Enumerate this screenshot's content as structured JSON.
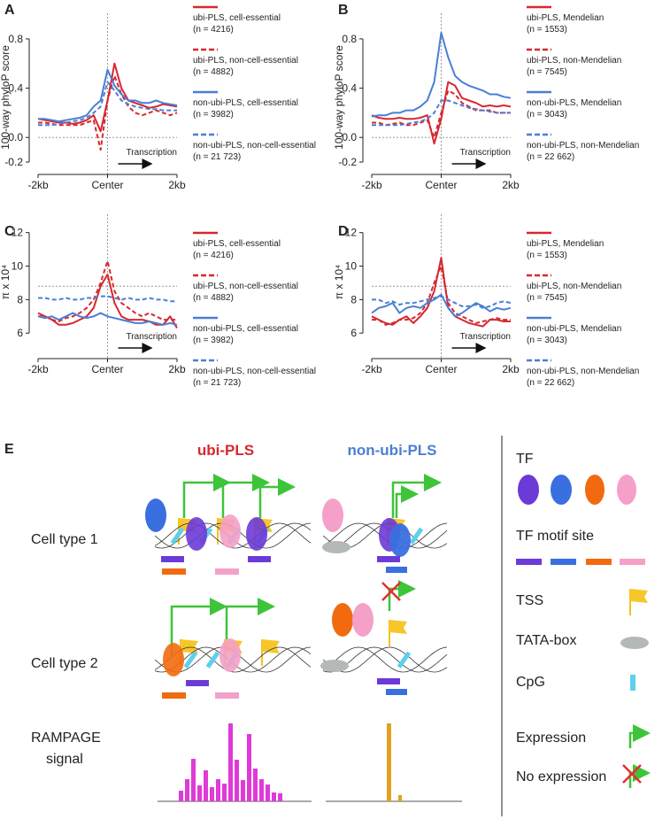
{
  "chart_data": [
    {
      "type": "line",
      "label": "A",
      "ylabel": "100-way phyloP score",
      "annotation": "Transcription",
      "x": [
        -2000,
        -1800,
        -1600,
        -1400,
        -1200,
        -1000,
        -800,
        -600,
        -400,
        -200,
        0,
        200,
        400,
        600,
        800,
        1000,
        1200,
        1400,
        1600,
        1800,
        2000
      ],
      "xlim": [
        -2000,
        2000
      ],
      "xticks": [
        {
          "value": -2000,
          "label": "-2kb"
        },
        {
          "value": 0,
          "label": "Center"
        },
        {
          "value": 2000,
          "label": "2kb"
        }
      ],
      "ylim": [
        -0.25,
        0.9
      ],
      "yticks": [
        -0.2,
        {
          "value": 0,
          "label": "0.0"
        },
        0.4,
        0.8
      ],
      "reference_y": 0,
      "reference_x": 0,
      "series": [
        {
          "name": "ubi-PLS, cell-essential",
          "count_label": "(n = 4216)",
          "color": "#d7282f",
          "dashed": false,
          "values": [
            0.15,
            0.14,
            0.13,
            0.12,
            0.12,
            0.11,
            0.12,
            0.14,
            0.18,
            0.05,
            0.3,
            0.6,
            0.4,
            0.3,
            0.28,
            0.26,
            0.24,
            0.25,
            0.27,
            0.26,
            0.25
          ]
        },
        {
          "name": "ubi-PLS, non-cell-essential",
          "count_label": "(n = 4882)",
          "color": "#d7282f",
          "dashed": true,
          "values": [
            0.12,
            0.12,
            0.11,
            0.1,
            0.1,
            0.1,
            0.1,
            0.12,
            0.14,
            -0.1,
            0.3,
            0.5,
            0.35,
            0.25,
            0.2,
            0.18,
            0.2,
            0.22,
            0.2,
            0.18,
            0.2
          ]
        },
        {
          "name": "non-ubi-PLS, cell-essential",
          "count_label": "(n = 3982)",
          "color": "#4a7fd4",
          "dashed": false,
          "values": [
            0.15,
            0.15,
            0.14,
            0.13,
            0.14,
            0.15,
            0.16,
            0.18,
            0.25,
            0.3,
            0.55,
            0.42,
            0.35,
            0.3,
            0.3,
            0.28,
            0.28,
            0.3,
            0.28,
            0.27,
            0.26
          ]
        },
        {
          "name": "non-ubi-PLS, non-cell-essential",
          "count_label": "(n = 21 723)",
          "color": "#4a7fd4",
          "dashed": true,
          "values": [
            0.1,
            0.1,
            0.1,
            0.11,
            0.12,
            0.13,
            0.14,
            0.16,
            0.2,
            0.25,
            0.45,
            0.38,
            0.3,
            0.27,
            0.25,
            0.24,
            0.23,
            0.23,
            0.22,
            0.22,
            0.22
          ]
        }
      ]
    },
    {
      "type": "line",
      "label": "B",
      "ylabel": "100-way phyloP score",
      "annotation": "Transcription",
      "x": [
        -2000,
        -1800,
        -1600,
        -1400,
        -1200,
        -1000,
        -800,
        -600,
        -400,
        -200,
        0,
        200,
        400,
        600,
        800,
        1000,
        1200,
        1400,
        1600,
        1800,
        2000
      ],
      "xlim": [
        -2000,
        2000
      ],
      "xticks": [
        {
          "value": -2000,
          "label": "-2kb"
        },
        {
          "value": 0,
          "label": "Center"
        },
        {
          "value": 2000,
          "label": "2kb"
        }
      ],
      "ylim": [
        -0.25,
        0.9
      ],
      "yticks": [
        -0.2,
        {
          "value": 0,
          "label": "0.0"
        },
        0.4,
        0.8
      ],
      "reference_y": 0,
      "reference_x": 0,
      "series": [
        {
          "name": "ubi-PLS, Mendelian",
          "count_label": "(n = 1553)",
          "color": "#d7282f",
          "dashed": false,
          "values": [
            0.18,
            0.16,
            0.15,
            0.15,
            0.16,
            0.15,
            0.15,
            0.16,
            0.18,
            -0.05,
            0.15,
            0.45,
            0.42,
            0.32,
            0.3,
            0.28,
            0.25,
            0.26,
            0.25,
            0.26,
            0.25
          ]
        },
        {
          "name": "ubi-PLS, non-Mendelian",
          "count_label": "(n = 7545)",
          "color": "#d7282f",
          "dashed": true,
          "values": [
            0.12,
            0.12,
            0.1,
            0.11,
            0.12,
            0.1,
            0.1,
            0.12,
            0.14,
            0.0,
            0.2,
            0.38,
            0.35,
            0.28,
            0.25,
            0.22,
            0.22,
            0.22,
            0.2,
            0.2,
            0.2
          ]
        },
        {
          "name": "non-ubi-PLS, Mendelian",
          "count_label": "(n = 3043)",
          "color": "#4a7fd4",
          "dashed": false,
          "values": [
            0.17,
            0.18,
            0.18,
            0.2,
            0.2,
            0.22,
            0.22,
            0.25,
            0.3,
            0.45,
            0.85,
            0.65,
            0.5,
            0.45,
            0.42,
            0.4,
            0.38,
            0.35,
            0.35,
            0.33,
            0.32
          ]
        },
        {
          "name": "non-ubi-PLS, non-Mendelian",
          "count_label": "(n = 22 662)",
          "color": "#4a7fd4",
          "dashed": true,
          "values": [
            0.1,
            0.1,
            0.1,
            0.1,
            0.1,
            0.11,
            0.12,
            0.13,
            0.15,
            0.2,
            0.3,
            0.3,
            0.28,
            0.26,
            0.24,
            0.23,
            0.22,
            0.21,
            0.2,
            0.2,
            0.2
          ]
        }
      ]
    },
    {
      "type": "line",
      "label": "C",
      "ylabel": "π x 10⁴",
      "annotation": "Transcription",
      "x": [
        -2000,
        -1800,
        -1600,
        -1400,
        -1200,
        -1000,
        -800,
        -600,
        -400,
        -200,
        0,
        200,
        400,
        600,
        800,
        1000,
        1200,
        1400,
        1600,
        1800,
        2000
      ],
      "xlim": [
        -2000,
        2000
      ],
      "xticks": [
        {
          "value": -2000,
          "label": "-2kb"
        },
        {
          "value": 0,
          "label": "Center"
        },
        {
          "value": 2000,
          "label": "2kb"
        }
      ],
      "ylim": [
        5.8,
        12.3
      ],
      "yticks": [
        6,
        8,
        10,
        12
      ],
      "reference_y": 8.8,
      "reference_x": 0,
      "series": [
        {
          "name": "ubi-PLS, cell-essential",
          "count_label": "(n = 4216)",
          "color": "#d7282f",
          "dashed": false,
          "values": [
            7.2,
            7.0,
            6.8,
            6.5,
            6.5,
            6.6,
            6.8,
            7.0,
            7.5,
            8.8,
            9.5,
            7.8,
            7.0,
            6.8,
            6.8,
            6.8,
            6.7,
            6.5,
            6.5,
            7.0,
            6.3
          ]
        },
        {
          "name": "ubi-PLS, non-cell-essential",
          "count_label": "(n = 4882)",
          "color": "#d7282f",
          "dashed": true,
          "values": [
            7.0,
            7.0,
            6.8,
            6.7,
            6.9,
            7.0,
            7.2,
            7.5,
            8.0,
            9.0,
            10.3,
            8.5,
            7.8,
            7.5,
            7.2,
            7.0,
            7.2,
            7.0,
            6.8,
            6.8,
            6.8
          ]
        },
        {
          "name": "non-ubi-PLS, cell-essential",
          "count_label": "(n = 3982)",
          "color": "#4a7fd4",
          "dashed": false,
          "values": [
            7.0,
            6.9,
            7.0,
            6.8,
            7.0,
            7.2,
            7.0,
            6.9,
            7.0,
            7.2,
            7.0,
            6.9,
            6.8,
            6.7,
            6.6,
            6.6,
            6.7,
            6.6,
            6.5,
            6.6,
            6.5
          ]
        },
        {
          "name": "non-ubi-PLS, non-cell-essential",
          "count_label": "(n = 21 723)",
          "color": "#4a7fd4",
          "dashed": true,
          "values": [
            8.1,
            8.1,
            8.0,
            8.0,
            8.1,
            8.0,
            8.0,
            8.1,
            8.1,
            8.2,
            8.2,
            8.1,
            8.0,
            8.1,
            8.0,
            8.0,
            8.1,
            8.0,
            8.0,
            7.9,
            7.9
          ]
        }
      ]
    },
    {
      "type": "line",
      "label": "D",
      "ylabel": "π x 10⁴",
      "annotation": "Transcription",
      "x": [
        -2000,
        -1800,
        -1600,
        -1400,
        -1200,
        -1000,
        -800,
        -600,
        -400,
        -200,
        0,
        200,
        400,
        600,
        800,
        1000,
        1200,
        1400,
        1600,
        1800,
        2000
      ],
      "xlim": [
        -2000,
        2000
      ],
      "xticks": [
        {
          "value": -2000,
          "label": "-2kb"
        },
        {
          "value": 0,
          "label": "Center"
        },
        {
          "value": 2000,
          "label": "2kb"
        }
      ],
      "ylim": [
        5.8,
        12.3
      ],
      "yticks": [
        6,
        8,
        10,
        12
      ],
      "reference_y": 8.8,
      "reference_x": 0,
      "series": [
        {
          "name": "ubi-PLS, Mendelian",
          "count_label": "(n = 1553)",
          "color": "#d7282f",
          "dashed": false,
          "values": [
            7.0,
            6.8,
            6.6,
            6.5,
            6.8,
            7.0,
            6.6,
            7.0,
            7.5,
            8.5,
            10.5,
            7.5,
            7.0,
            6.8,
            6.6,
            6.5,
            6.4,
            6.8,
            6.8,
            6.7,
            6.7
          ]
        },
        {
          "name": "ubi-PLS, non-Mendelian",
          "count_label": "(n = 7545)",
          "color": "#d7282f",
          "dashed": true,
          "values": [
            6.8,
            6.8,
            6.5,
            6.6,
            6.8,
            6.8,
            6.9,
            7.2,
            7.8,
            9.0,
            10.0,
            7.8,
            7.2,
            7.0,
            6.8,
            6.6,
            6.7,
            6.8,
            6.9,
            6.8,
            6.8
          ]
        },
        {
          "name": "non-ubi-PLS, Mendelian",
          "count_label": "(n = 3043)",
          "color": "#4a7fd4",
          "dashed": false,
          "values": [
            7.2,
            7.5,
            7.6,
            7.8,
            7.2,
            7.5,
            7.6,
            7.5,
            7.8,
            8.0,
            8.3,
            7.5,
            7.0,
            7.2,
            7.5,
            7.8,
            7.6,
            7.3,
            7.5,
            7.4,
            7.5
          ]
        },
        {
          "name": "non-ubi-PLS, non-Mendelian",
          "count_label": "(n = 22 662)",
          "color": "#4a7fd4",
          "dashed": true,
          "values": [
            8.0,
            8.0,
            7.8,
            7.9,
            7.7,
            7.8,
            7.8,
            7.9,
            8.0,
            8.1,
            8.2,
            8.0,
            7.8,
            7.6,
            7.6,
            7.7,
            7.5,
            7.6,
            7.8,
            7.9,
            7.8
          ]
        }
      ]
    }
  ],
  "diagram": {
    "label": "E",
    "columns": [
      "ubi-PLS",
      "non-ubi-PLS"
    ],
    "rows": [
      "Cell type 1",
      "Cell type 2"
    ],
    "signal_label": [
      "RAMPAGE",
      "signal"
    ],
    "legend": [
      "TF",
      "TF motif site",
      "TSS",
      "TATA-box",
      "CpG",
      "Expression",
      "No expression"
    ]
  }
}
